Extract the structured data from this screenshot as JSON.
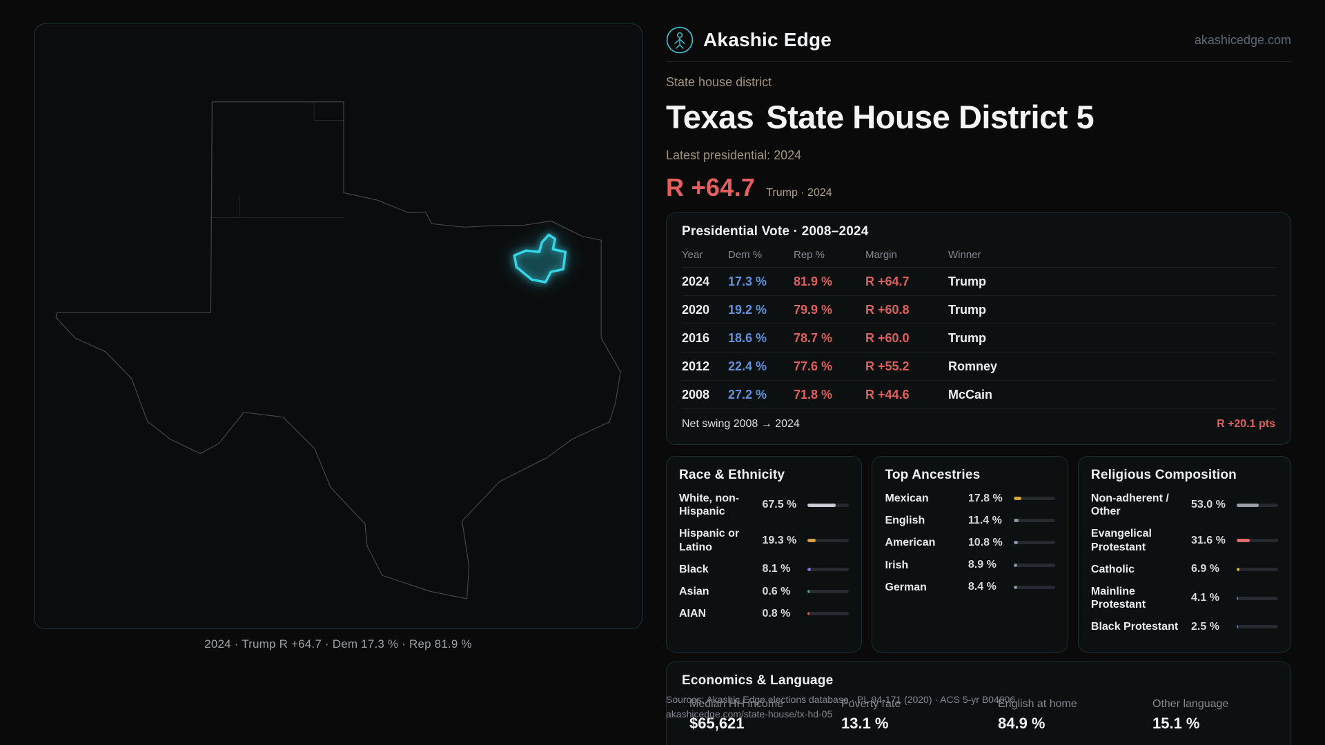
{
  "colors": {
    "accent_teal": "#3ec9d8",
    "district_highlight": "#35d6e8",
    "republican_red": "#e0605e",
    "democrat_blue": "#6292dd"
  },
  "header": {
    "brand": "Akashic Edge",
    "site_link": "akashicedge.com"
  },
  "hero": {
    "kicker": "State house district",
    "title_state": "Texas",
    "title_rest": "State House District 5",
    "latest_label": "Latest presidential: 2024",
    "margin_value": "R +64.7",
    "margin_context": "Trump · 2024"
  },
  "map": {
    "caption": "2024 · Trump R +64.7 · Dem 17.3 % · Rep 81.9 %"
  },
  "presidential": {
    "title": "Presidential Vote · 2008–2024",
    "columns": [
      "Year",
      "Dem %",
      "Rep %",
      "Margin",
      "Winner"
    ],
    "rows": [
      {
        "year": "2024",
        "dem": "17.3 %",
        "rep": "81.9 %",
        "margin": "R +64.7",
        "winner": "Trump"
      },
      {
        "year": "2020",
        "dem": "19.2 %",
        "rep": "79.9 %",
        "margin": "R +60.8",
        "winner": "Trump"
      },
      {
        "year": "2016",
        "dem": "18.6 %",
        "rep": "78.7 %",
        "margin": "R +60.0",
        "winner": "Trump"
      },
      {
        "year": "2012",
        "dem": "22.4 %",
        "rep": "77.6 %",
        "margin": "R +55.2",
        "winner": "Romney"
      },
      {
        "year": "2008",
        "dem": "27.2 %",
        "rep": "71.8 %",
        "margin": "R +44.6",
        "winner": "McCain"
      }
    ],
    "net_swing_label": "Net swing 2008 → 2024",
    "net_swing_value": "R +20.1 pts"
  },
  "race": {
    "title": "Race & Ethnicity",
    "rows": [
      {
        "label": "White, non-Hispanic",
        "value": "67.5 %",
        "pct": 67.5,
        "color": "#c9cdd3"
      },
      {
        "label": "Hispanic or Latino",
        "value": "19.3 %",
        "pct": 19.3,
        "color": "#d9a13e"
      },
      {
        "label": "Black",
        "value": "8.1 %",
        "pct": 8.1,
        "color": "#7d6fe0"
      },
      {
        "label": "Asian",
        "value": "0.6 %",
        "pct": 0.6,
        "color": "#4fae6e"
      },
      {
        "label": "AIAN",
        "value": "0.8 %",
        "pct": 0.8,
        "color": "#c95b5b"
      }
    ]
  },
  "ancestries": {
    "title": "Top Ancestries",
    "rows": [
      {
        "label": "Mexican",
        "value": "17.8 %",
        "pct": 17.8,
        "color": "#d9a13e"
      },
      {
        "label": "English",
        "value": "11.4 %",
        "pct": 11.4,
        "color": "#8a92a6"
      },
      {
        "label": "American",
        "value": "10.8 %",
        "pct": 10.8,
        "color": "#8a92a6"
      },
      {
        "label": "Irish",
        "value": "8.9 %",
        "pct": 8.9,
        "color": "#8a92a6"
      },
      {
        "label": "German",
        "value": "8.4 %",
        "pct": 8.4,
        "color": "#8a92a6"
      }
    ]
  },
  "religion": {
    "title": "Religious Composition",
    "rows": [
      {
        "label": "Non-adherent / Other",
        "value": "53.0 %",
        "pct": 53.0,
        "color": "#9aa0a8"
      },
      {
        "label": "Evangelical Protestant",
        "value": "31.6 %",
        "pct": 31.6,
        "color": "#e06a68"
      },
      {
        "label": "Catholic",
        "value": "6.9 %",
        "pct": 6.9,
        "color": "#d9ae3e"
      },
      {
        "label": "Mainline Protestant",
        "value": "4.1 %",
        "pct": 4.1,
        "color": "#5c82d6"
      },
      {
        "label": "Black Protestant",
        "value": "2.5 %",
        "pct": 2.5,
        "color": "#5f6fd8"
      }
    ]
  },
  "economics": {
    "title": "Economics & Language",
    "stats": [
      {
        "label": "Median HH income",
        "value": "$65,621"
      },
      {
        "label": "Poverty rate",
        "value": "13.1 %"
      },
      {
        "label": "English at home",
        "value": "84.9 %"
      },
      {
        "label": "Other language",
        "value": "15.1 %"
      }
    ]
  },
  "footer": {
    "sources": "Sources: Akashic Edge elections database · PL 94-171 (2020) · ACS 5-yr B04006",
    "permalink": "akashicedge.com/state-house/tx-hd-05"
  }
}
